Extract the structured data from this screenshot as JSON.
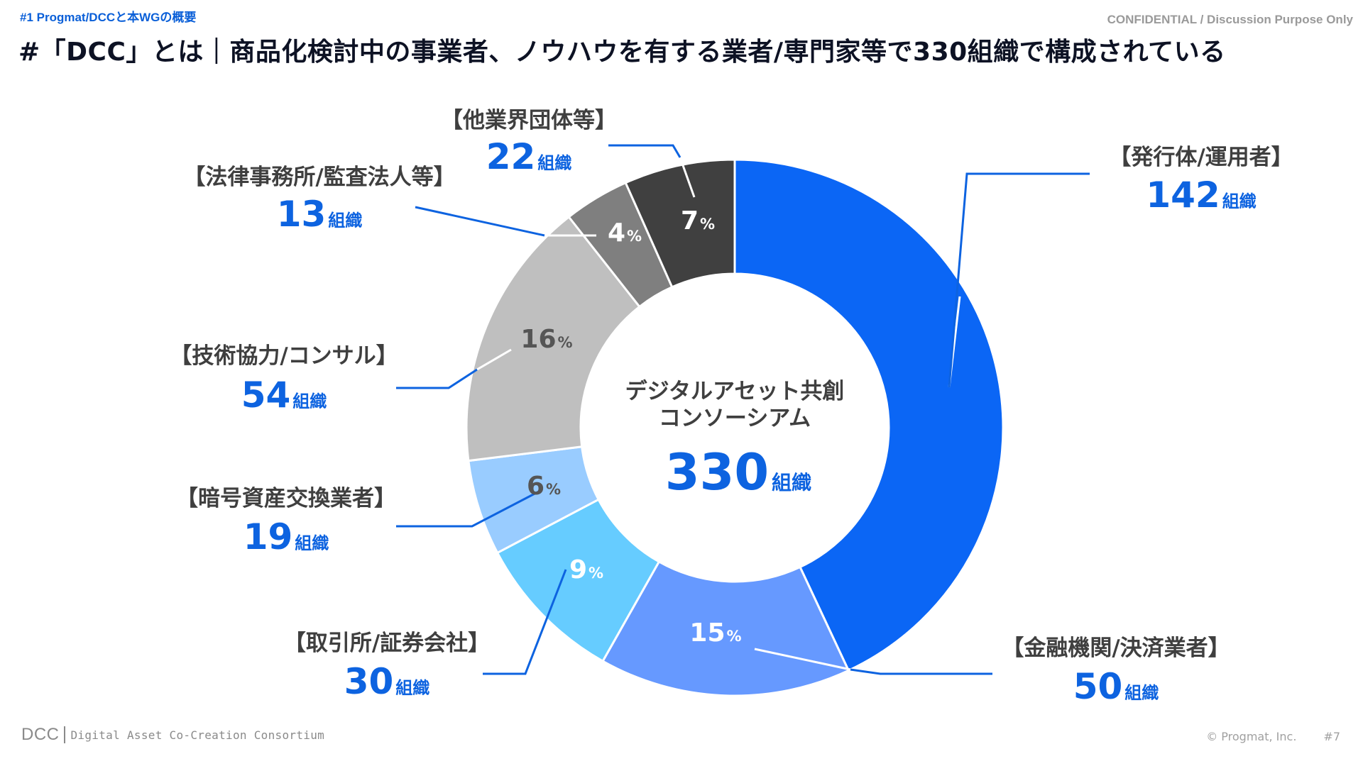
{
  "header": {
    "section_label": "#1  Progmat/DCCと本WGの概要",
    "confidential": "CONFIDENTIAL / Discussion Purpose Only",
    "title": "#「DCC」とは｜商品化検討中の事業者、ノウハウを有する業者/専門家等で330組織で構成されている"
  },
  "chart_data": {
    "type": "pie",
    "variant": "donut",
    "title": "",
    "center_title_lines": [
      "デジタルアセット共創",
      "コンソーシアム"
    ],
    "total": 330,
    "unit": "組織",
    "start": "top",
    "direction": "clockwise",
    "slices": [
      {
        "label": "【発行体/運用者】",
        "count": 142,
        "percent": 43,
        "color": "#0b66f5",
        "pct_color": "#ffffff"
      },
      {
        "label": "【金融機関/決済業者】",
        "count": 50,
        "percent": 15,
        "color": "#6699ff",
        "pct_color": "#ffffff"
      },
      {
        "label": "【取引所/証券会社】",
        "count": 30,
        "percent": 9,
        "color": "#66ccff",
        "pct_color": "#ffffff"
      },
      {
        "label": "【暗号資産交換業者】",
        "count": 19,
        "percent": 6,
        "color": "#99ccff",
        "pct_color": "#555555"
      },
      {
        "label": "【技術協力/コンサル】",
        "count": 54,
        "percent": 16,
        "color": "#bfbfbf",
        "pct_color": "#555555"
      },
      {
        "label": "【法律事務所/監査法人等】",
        "count": 13,
        "percent": 4,
        "color": "#7f7f7f",
        "pct_color": "#ffffff"
      },
      {
        "label": "【他業界団体等】",
        "count": 22,
        "percent": 7,
        "color": "#404040",
        "pct_color": "#ffffff"
      }
    ],
    "leader_line_color": "#0d63e0"
  },
  "footer": {
    "logo": "DCC",
    "subtitle": "Digital Asset Co-Creation Consortium",
    "copyright": "© Progmat, Inc.",
    "page": "#7"
  }
}
